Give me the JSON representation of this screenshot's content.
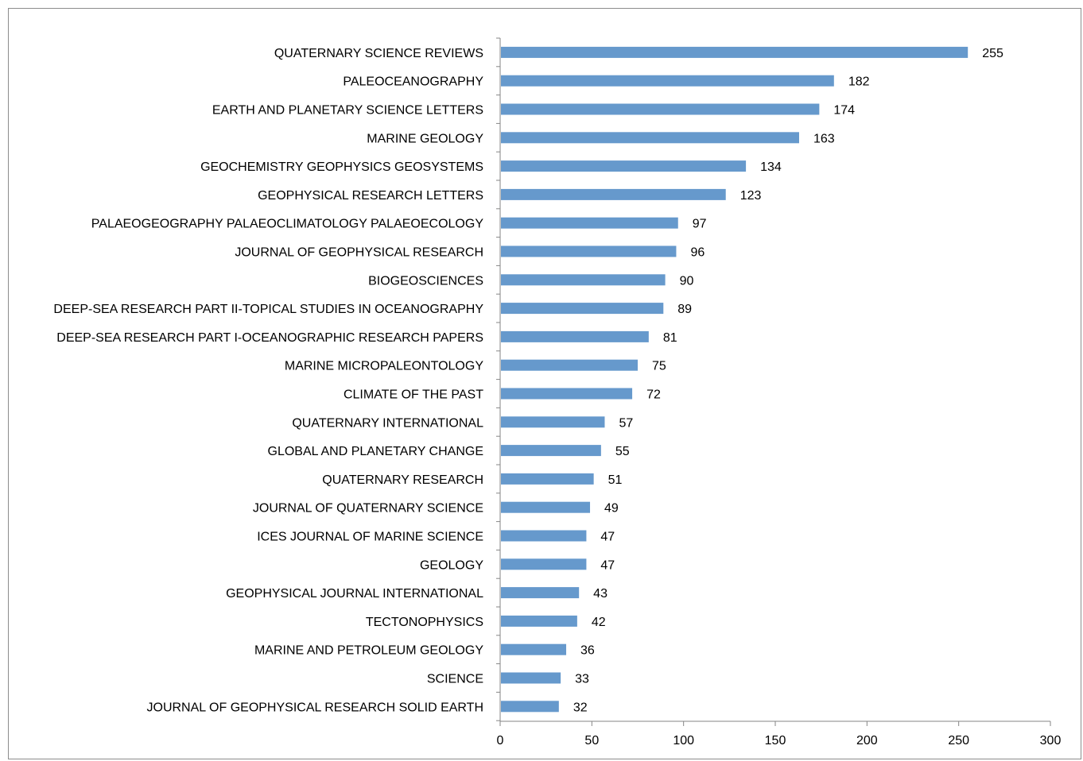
{
  "chart_data": {
    "type": "bar",
    "orientation": "horizontal",
    "title": "",
    "xlabel": "",
    "ylabel": "",
    "xlim": [
      0,
      300
    ],
    "x_ticks": [
      0,
      50,
      100,
      150,
      200,
      250,
      300
    ],
    "grid": false,
    "legend": "none",
    "bar_color": "#6699CC",
    "categories": [
      "QUATERNARY SCIENCE REVIEWS",
      "PALEOCEANOGRAPHY",
      "EARTH AND PLANETARY SCIENCE LETTERS",
      "MARINE GEOLOGY",
      "GEOCHEMISTRY GEOPHYSICS GEOSYSTEMS",
      "GEOPHYSICAL RESEARCH LETTERS",
      "PALAEOGEOGRAPHY PALAEOCLIMATOLOGY PALAEOECOLOGY",
      "JOURNAL OF GEOPHYSICAL RESEARCH",
      "BIOGEOSCIENCES",
      "DEEP-SEA RESEARCH PART II-TOPICAL STUDIES IN OCEANOGRAPHY",
      "DEEP-SEA RESEARCH PART I-OCEANOGRAPHIC RESEARCH PAPERS",
      "MARINE MICROPALEONTOLOGY",
      "CLIMATE OF THE PAST",
      "QUATERNARY INTERNATIONAL",
      "GLOBAL AND PLANETARY CHANGE",
      "QUATERNARY RESEARCH",
      "JOURNAL OF QUATERNARY SCIENCE",
      "ICES JOURNAL OF MARINE SCIENCE",
      "GEOLOGY",
      "GEOPHYSICAL JOURNAL INTERNATIONAL",
      "TECTONOPHYSICS",
      "MARINE AND PETROLEUM GEOLOGY",
      "SCIENCE",
      "JOURNAL OF GEOPHYSICAL RESEARCH SOLID EARTH"
    ],
    "values": [
      255,
      182,
      174,
      163,
      134,
      123,
      97,
      96,
      90,
      89,
      81,
      75,
      72,
      57,
      55,
      51,
      49,
      47,
      47,
      43,
      42,
      36,
      33,
      32
    ]
  }
}
